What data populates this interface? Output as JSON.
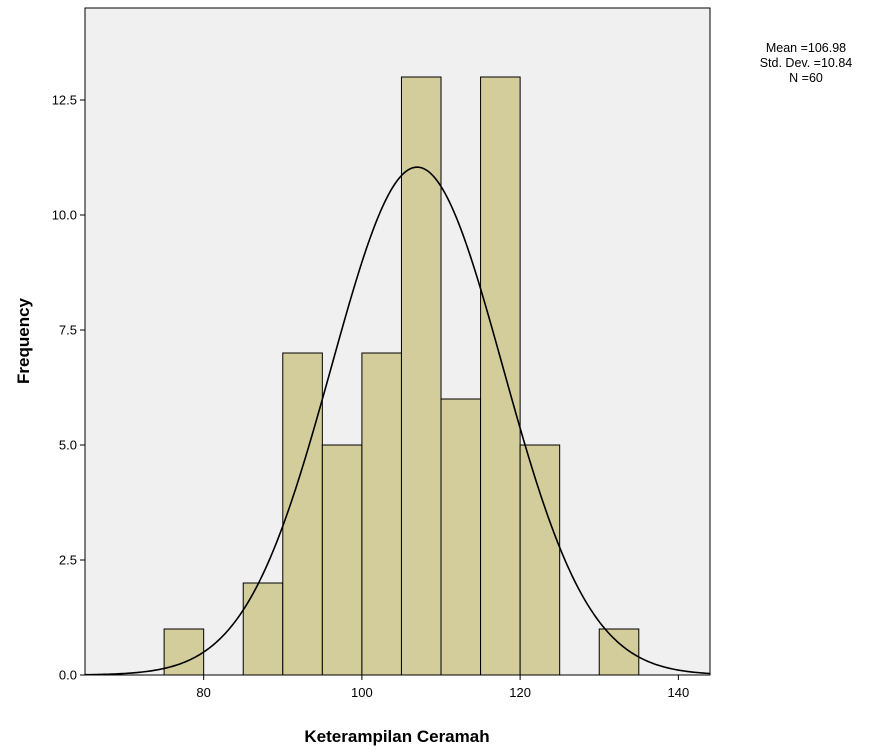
{
  "chart_data": {
    "type": "bar",
    "subtype": "histogram",
    "xlabel": "Keterampilan Ceramah",
    "ylabel": "Frequency",
    "xlim": [
      65,
      144
    ],
    "ylim": [
      0,
      14.5
    ],
    "x_ticks": [
      80,
      100,
      120,
      140
    ],
    "x_tick_labels": [
      "80",
      "100",
      "120",
      "140"
    ],
    "y_ticks": [
      0,
      2.5,
      5,
      7.5,
      10,
      12.5
    ],
    "y_tick_labels": [
      "0.0",
      "2.5",
      "5.0",
      "7.5",
      "10.0",
      "12.5"
    ],
    "bins": [
      {
        "start": 75,
        "end": 80,
        "frequency": 1
      },
      {
        "start": 80,
        "end": 85,
        "frequency": 0
      },
      {
        "start": 85,
        "end": 90,
        "frequency": 2
      },
      {
        "start": 90,
        "end": 95,
        "frequency": 7
      },
      {
        "start": 95,
        "end": 100,
        "frequency": 5
      },
      {
        "start": 100,
        "end": 105,
        "frequency": 7
      },
      {
        "start": 105,
        "end": 110,
        "frequency": 13
      },
      {
        "start": 110,
        "end": 115,
        "frequency": 6
      },
      {
        "start": 115,
        "end": 120,
        "frequency": 13
      },
      {
        "start": 120,
        "end": 125,
        "frequency": 5
      },
      {
        "start": 125,
        "end": 130,
        "frequency": 0
      },
      {
        "start": 130,
        "end": 135,
        "frequency": 1
      }
    ],
    "normal_curve": {
      "mean": 106.98,
      "std_dev": 10.84,
      "n": 60
    },
    "stats_lines": [
      "Mean =106.98",
      "Std. Dev. =10.84",
      "N =60"
    ],
    "grid": false,
    "colors": {
      "bar_fill": "#d3cd9b",
      "bar_stroke": "#000000",
      "plot_background": "#f0f0f0",
      "curve": "#000000"
    }
  }
}
